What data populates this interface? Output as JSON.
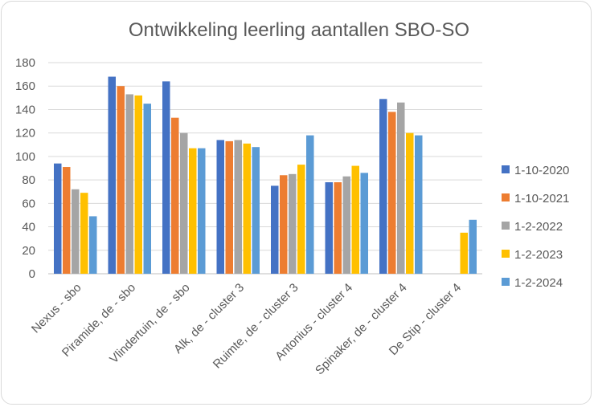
{
  "chart_data": {
    "type": "bar",
    "title": "Ontwikkeling leerling aantallen SBO-SO",
    "xlabel": "",
    "ylabel": "",
    "ylim": [
      0,
      180
    ],
    "yticks": [
      0,
      20,
      40,
      60,
      80,
      100,
      120,
      140,
      160,
      180
    ],
    "grid": true,
    "legend_position": "right",
    "categories": [
      "Nexus - sbo",
      "Piramide, de - sbo",
      "Vlindertuin, de - sbo",
      "Alk, de - cluster 3",
      "Ruimte, de - cluster 3",
      "Antonius - cluster 4",
      "Spinaker, de - cluster 4",
      "De Stip - cluster 4"
    ],
    "series": [
      {
        "name": "1-10-2020",
        "color": "#4472c4",
        "values": [
          94,
          168,
          164,
          114,
          75,
          78,
          149,
          null
        ]
      },
      {
        "name": "1-10-2021",
        "color": "#ed7d31",
        "values": [
          91,
          160,
          133,
          113,
          84,
          78,
          138,
          null
        ]
      },
      {
        "name": "1-2-2022",
        "color": "#a5a5a5",
        "values": [
          72,
          153,
          120,
          114,
          85,
          83,
          146,
          null
        ]
      },
      {
        "name": "1-2-2023",
        "color": "#ffc000",
        "values": [
          69,
          152,
          107,
          111,
          93,
          92,
          120,
          35
        ]
      },
      {
        "name": "1-2-2024",
        "color": "#5b9bd5",
        "values": [
          49,
          145,
          107,
          108,
          118,
          86,
          118,
          46
        ]
      }
    ]
  }
}
